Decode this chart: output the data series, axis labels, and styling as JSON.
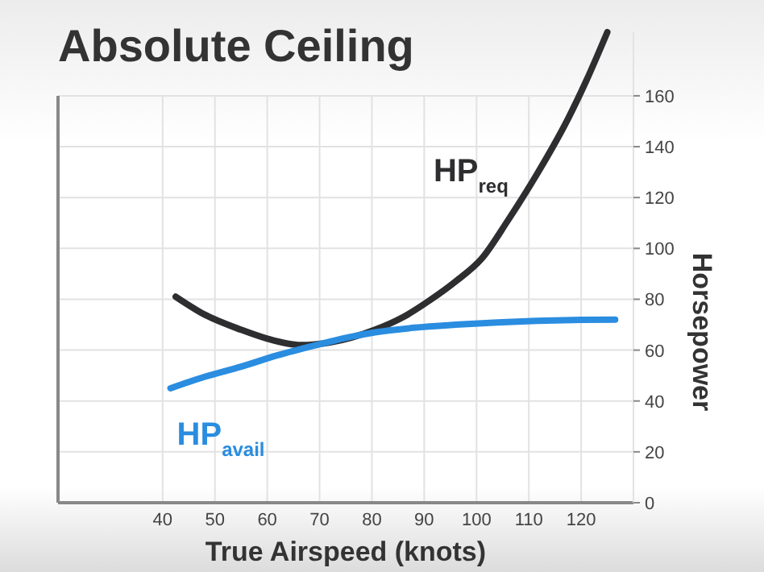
{
  "chart_data": {
    "type": "line",
    "title": "Absolute Ceiling",
    "xlabel": "True Airspeed (knots)",
    "ylabel": "Horsepower",
    "xlim": [
      20,
      130
    ],
    "xticks": [
      40,
      50,
      60,
      70,
      80,
      90,
      100,
      110,
      120
    ],
    "ylim": [
      0,
      185
    ],
    "yticks": [
      0,
      20,
      40,
      60,
      80,
      100,
      120,
      140,
      160
    ],
    "grid": true,
    "line_style": "solid",
    "series": [
      {
        "name": "HP$_{req}$",
        "color": "#2e2e30",
        "x": [
          42.5,
          48,
          55,
          60,
          66.4,
          72,
          80.6,
          86,
          91,
          96,
          101,
          106,
          111.5,
          117.5,
          121,
          125
        ],
        "values": [
          81,
          74,
          68,
          64.5,
          62,
          63,
          68,
          73,
          79.5,
          87,
          96,
          111,
          129,
          151,
          166,
          185
        ]
      },
      {
        "name": "HP$_{avail}$",
        "color": "#2a8de0",
        "x": [
          41.5,
          48,
          55,
          62,
          69.4,
          75,
          80.6,
          88,
          96,
          104,
          111.5,
          120,
          126.5
        ],
        "values": [
          45,
          49.5,
          53.5,
          58,
          62,
          64.8,
          67,
          68.8,
          70,
          70.9,
          71.5,
          71.9,
          72
        ]
      }
    ]
  }
}
